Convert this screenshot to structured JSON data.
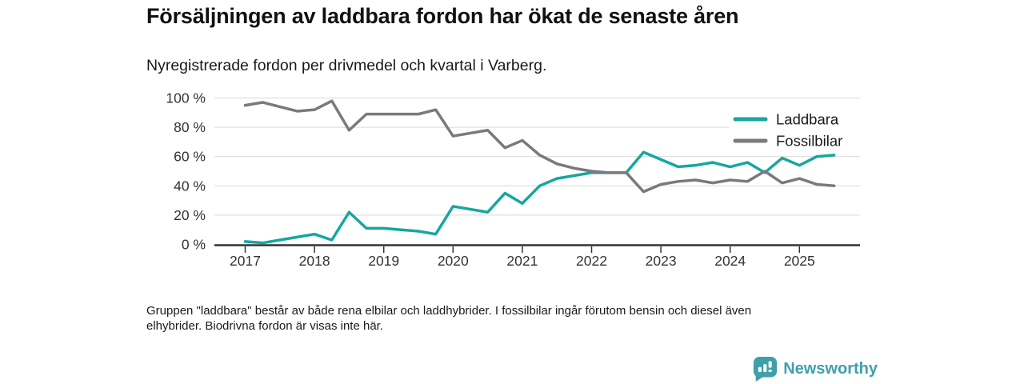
{
  "header": {
    "title": "Försäljningen av laddbara fordon har ökat de senaste åren",
    "subtitle": "Nyregistrerade fordon per drivmedel och kvartal i Varberg."
  },
  "footnote": {
    "line1": "Gruppen \"laddbara\" består av både rena elbilar och laddhybrider. I fossilbilar ingår förutom bensin och diesel även",
    "line2": "elhybrider. Biodrivna fordon är visas inte här."
  },
  "logo": {
    "text": "Newsworthy",
    "icon": "newsworthy-chart-bubble",
    "color": "#3fa0a9"
  },
  "colors": {
    "laddbara": "#17a6a0",
    "fossilbilar": "#7a7a7c",
    "grid": "#d9d9d9",
    "axis": "#333333",
    "tick_text": "#333333",
    "legend_text": "#1a1a1a"
  },
  "chart_data": {
    "type": "line",
    "title": "Försäljningen av laddbara fordon har ökat de senaste åren",
    "subtitle": "Nyregistrerade fordon per drivmedel och kvartal i Varberg.",
    "xlabel": "",
    "ylabel": "",
    "ylim": [
      0,
      100
    ],
    "grid": true,
    "legend_position": "top-right",
    "yticks": [
      0,
      20,
      40,
      60,
      80,
      100
    ],
    "ytick_labels": [
      "0 %",
      "20 %",
      "40 %",
      "60 %",
      "80 %",
      "100 %"
    ],
    "x_tick_labels": [
      "2017",
      "2018",
      "2019",
      "2020",
      "2021",
      "2022",
      "2023",
      "2024",
      "2025"
    ],
    "x_unit": "quarter",
    "categories": [
      "2017 Q1",
      "2017 Q2",
      "2017 Q3",
      "2017 Q4",
      "2018 Q1",
      "2018 Q2",
      "2018 Q3",
      "2018 Q4",
      "2019 Q1",
      "2019 Q2",
      "2019 Q3",
      "2019 Q4",
      "2020 Q1",
      "2020 Q2",
      "2020 Q3",
      "2020 Q4",
      "2021 Q1",
      "2021 Q2",
      "2021 Q3",
      "2021 Q4",
      "2022 Q1",
      "2022 Q2",
      "2022 Q3",
      "2022 Q4",
      "2023 Q1",
      "2023 Q2",
      "2023 Q3",
      "2023 Q4",
      "2024 Q1",
      "2024 Q2",
      "2024 Q3",
      "2024 Q4",
      "2025 Q1",
      "2025 Q2",
      "2025 Q3"
    ],
    "series": [
      {
        "name": "Laddbara",
        "color": "#17a6a0",
        "values": [
          2,
          1,
          3,
          5,
          7,
          3,
          22,
          11,
          11,
          10,
          9,
          7,
          26,
          24,
          22,
          35,
          28,
          40,
          45,
          47,
          49,
          49,
          49,
          63,
          58,
          53,
          54,
          56,
          53,
          56,
          49,
          59,
          54,
          60,
          61
        ]
      },
      {
        "name": "Fossilbilar",
        "color": "#7a7a7c",
        "values": [
          95,
          97,
          94,
          91,
          92,
          98,
          78,
          89,
          89,
          89,
          89,
          92,
          74,
          76,
          78,
          66,
          71,
          61,
          55,
          52,
          50,
          49,
          49,
          36,
          41,
          43,
          44,
          42,
          44,
          43,
          50,
          42,
          45,
          41,
          40
        ]
      }
    ]
  }
}
